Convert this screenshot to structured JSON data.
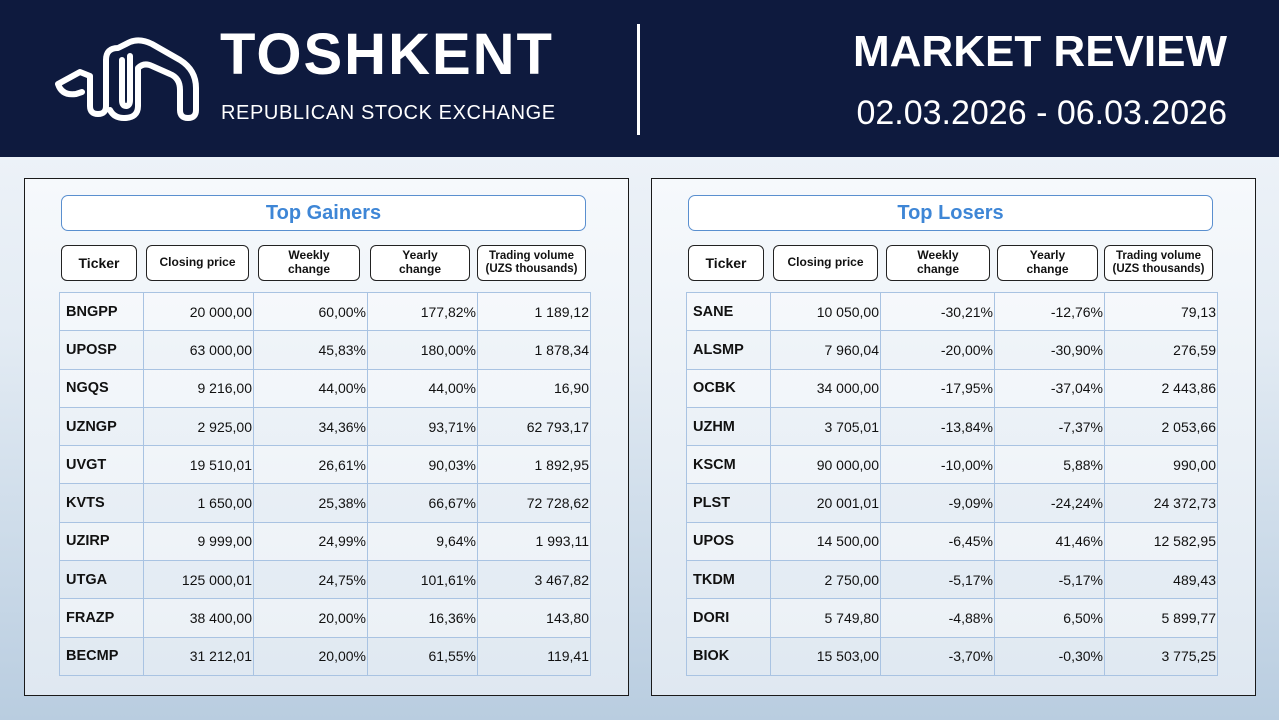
{
  "header": {
    "brand_title": "TOSHKENT",
    "brand_subtitle": "REPUBLICAN STOCK EXCHANGE",
    "review_title": "MARKET REVIEW",
    "review_dates": "02.03.2026 - 06.03.2026",
    "logo_icon": "exchange-logo-icon",
    "background_color": "#0e1a3e"
  },
  "columns": {
    "ticker": "Ticker",
    "closing_price": "Closing price",
    "weekly_1": "Weekly",
    "weekly_2": "change",
    "yearly_1": "Yearly",
    "yearly_2": "change",
    "volume_1": "Trading volume",
    "volume_2": "(UZS thousands)"
  },
  "colors": {
    "positive": "#1b9d4a",
    "negative": "#e03131",
    "title_blue": "#3e86d6"
  },
  "gainers": {
    "title": "Top Gainers",
    "rows": [
      {
        "ticker": "BNGPP",
        "price": "20 000,00",
        "weekly": "60,00%",
        "yearly": "177,82%",
        "volume": "1 189,12"
      },
      {
        "ticker": "UPOSP",
        "price": "63 000,00",
        "weekly": "45,83%",
        "yearly": "180,00%",
        "volume": "1 878,34"
      },
      {
        "ticker": "NGQS",
        "price": "9 216,00",
        "weekly": "44,00%",
        "yearly": "44,00%",
        "volume": "16,90"
      },
      {
        "ticker": "UZNGP",
        "price": "2 925,00",
        "weekly": "34,36%",
        "yearly": "93,71%",
        "volume": "62 793,17"
      },
      {
        "ticker": "UVGT",
        "price": "19 510,01",
        "weekly": "26,61%",
        "yearly": "90,03%",
        "volume": "1 892,95"
      },
      {
        "ticker": "KVTS",
        "price": "1 650,00",
        "weekly": "25,38%",
        "yearly": "66,67%",
        "volume": "72 728,62"
      },
      {
        "ticker": "UZIRP",
        "price": "9 999,00",
        "weekly": "24,99%",
        "yearly": "9,64%",
        "volume": "1 993,11"
      },
      {
        "ticker": "UTGA",
        "price": "125 000,01",
        "weekly": "24,75%",
        "yearly": "101,61%",
        "volume": "3 467,82"
      },
      {
        "ticker": "FRAZP",
        "price": "38 400,00",
        "weekly": "20,00%",
        "yearly": "16,36%",
        "volume": "143,80"
      },
      {
        "ticker": "BECMP",
        "price": "31 212,01",
        "weekly": "20,00%",
        "yearly": "61,55%",
        "volume": "119,41"
      }
    ]
  },
  "losers": {
    "title": "Top Losers",
    "rows": [
      {
        "ticker": "SANE",
        "price": "10 050,00",
        "weekly": "-30,21%",
        "yearly": "-12,76%",
        "volume": "79,13"
      },
      {
        "ticker": "ALSMP",
        "price": "7 960,04",
        "weekly": "-20,00%",
        "yearly": "-30,90%",
        "volume": "276,59"
      },
      {
        "ticker": "OCBK",
        "price": "34 000,00",
        "weekly": "-17,95%",
        "yearly": "-37,04%",
        "volume": "2 443,86"
      },
      {
        "ticker": "UZHM",
        "price": "3 705,01",
        "weekly": "-13,84%",
        "yearly": "-7,37%",
        "volume": "2 053,66"
      },
      {
        "ticker": "KSCM",
        "price": "90 000,00",
        "weekly": "-10,00%",
        "yearly": "5,88%",
        "volume": "990,00"
      },
      {
        "ticker": "PLST",
        "price": "20 001,01",
        "weekly": "-9,09%",
        "yearly": "-24,24%",
        "volume": "24 372,73"
      },
      {
        "ticker": "UPOS",
        "price": "14 500,00",
        "weekly": "-6,45%",
        "yearly": "41,46%",
        "volume": "12 582,95"
      },
      {
        "ticker": "TKDM",
        "price": "2 750,00",
        "weekly": "-5,17%",
        "yearly": "-5,17%",
        "volume": "489,43"
      },
      {
        "ticker": "DORI",
        "price": "5 749,80",
        "weekly": "-4,88%",
        "yearly": "6,50%",
        "volume": "5 899,77"
      },
      {
        "ticker": "BIOK",
        "price": "15 503,00",
        "weekly": "-3,70%",
        "yearly": "-0,30%",
        "volume": "3 775,25"
      }
    ]
  }
}
